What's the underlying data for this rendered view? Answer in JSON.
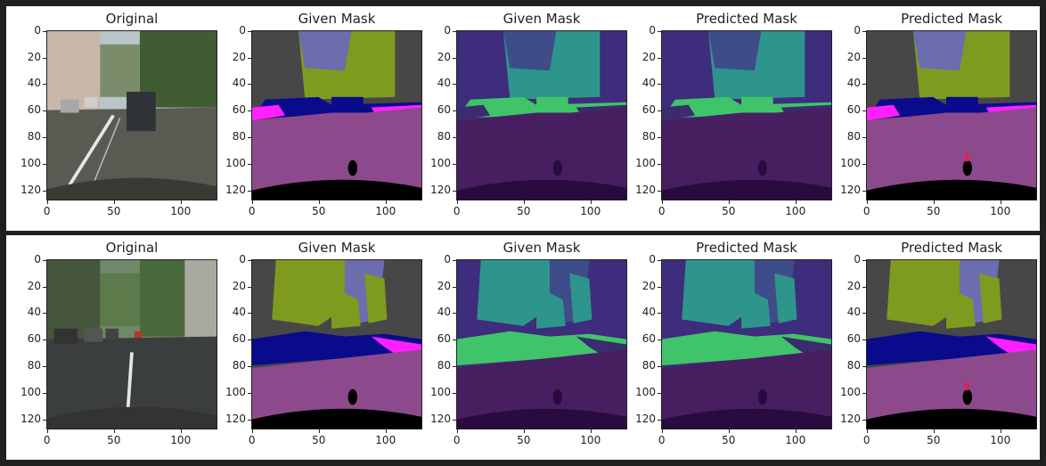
{
  "figures": [
    {
      "panels": [
        {
          "title": "Original",
          "kind": "photo1"
        },
        {
          "title": "Given Mask",
          "kind": "mask_color1"
        },
        {
          "title": "Given Mask",
          "kind": "mask_viridis1"
        },
        {
          "title": "Predicted Mask",
          "kind": "pred_viridis1"
        },
        {
          "title": "Predicted Mask",
          "kind": "pred_color1"
        }
      ]
    },
    {
      "panels": [
        {
          "title": "Original",
          "kind": "photo2"
        },
        {
          "title": "Given Mask",
          "kind": "mask_color2"
        },
        {
          "title": "Given Mask",
          "kind": "mask_viridis2"
        },
        {
          "title": "Predicted Mask",
          "kind": "pred_viridis2"
        },
        {
          "title": "Predicted Mask",
          "kind": "pred_color2"
        }
      ]
    }
  ],
  "axes": {
    "y_ticks": [
      "0",
      "20",
      "40",
      "60",
      "80",
      "100",
      "120"
    ],
    "x_ticks": [
      "0",
      "50",
      "100"
    ],
    "y_values": [
      0,
      20,
      40,
      60,
      80,
      100,
      120
    ],
    "x_values": [
      0,
      50,
      100
    ],
    "range": [
      0,
      128
    ]
  },
  "colors": {
    "background": "#1f1f1f",
    "road_color": "#8c4a8c",
    "car_color": "#0a0a8c",
    "vegetation_color": "#7f9b1f",
    "sky_color": "#6c6cae",
    "building_color": "#474747",
    "sidewalk_color": "#ff1fff",
    "viridis_road": "#471f61",
    "viridis_bg": "#3e2c7c",
    "viridis_veg": "#2e958c",
    "viridis_car": "#3fc46a"
  }
}
